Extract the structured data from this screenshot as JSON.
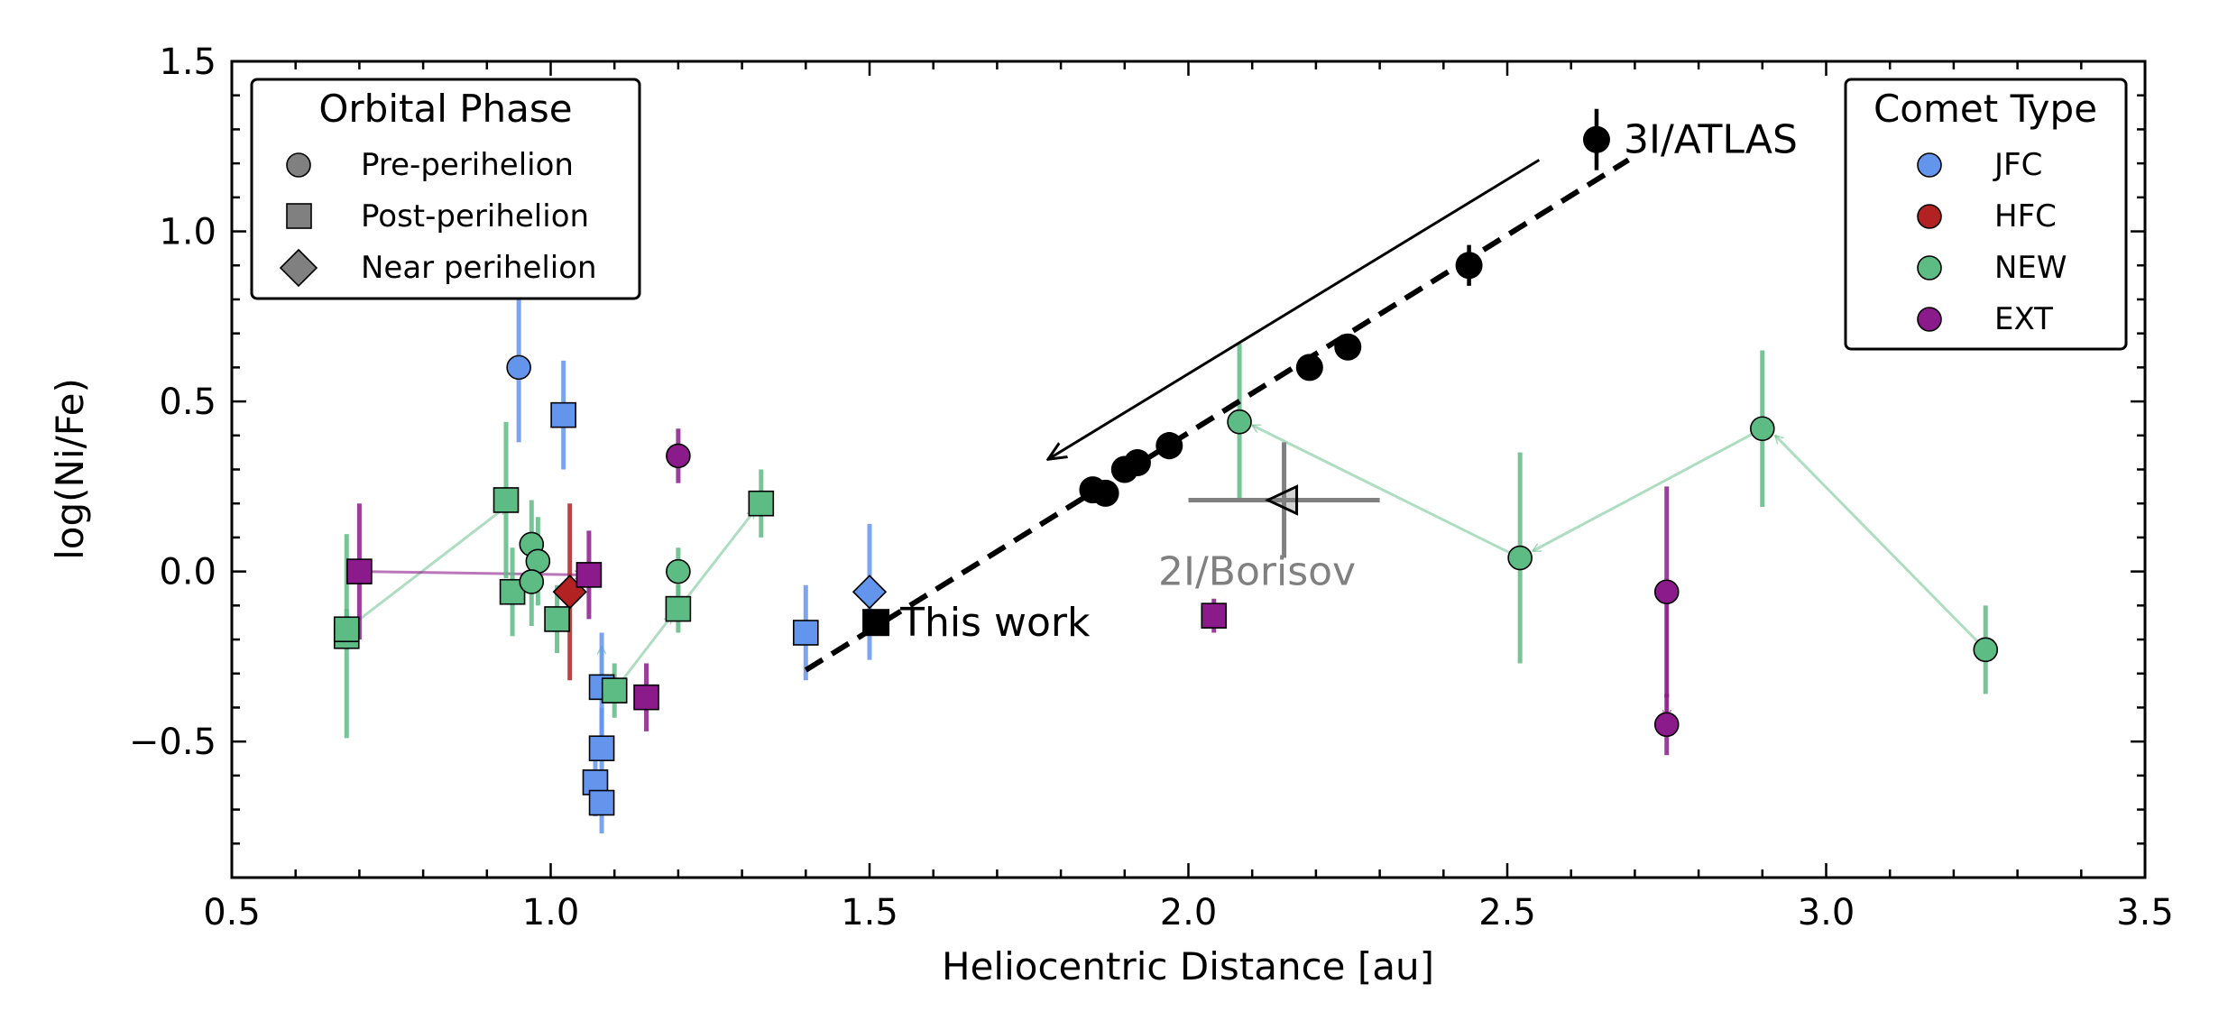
{
  "chart_data": {
    "type": "scatter",
    "xlabel": "Heliocentric Distance [au]",
    "ylabel": "log(Ni/Fe)",
    "xlim": [
      0.5,
      3.5
    ],
    "ylim": [
      -0.9,
      1.5
    ],
    "xticks": [
      0.5,
      1.0,
      1.5,
      2.0,
      2.5,
      3.0,
      3.5
    ],
    "xtick_labels": [
      "0.5",
      "1.0",
      "1.5",
      "2.0",
      "2.5",
      "3.0",
      "3.5"
    ],
    "yticks": [
      1.5,
      1.0,
      0.5,
      0.0,
      -0.5
    ],
    "ytick_labels": [
      "1.5",
      "1.0",
      "0.5",
      "0.0",
      "−0.5"
    ],
    "colors": {
      "JFC": "#6495ed",
      "HFC": "#b22222",
      "NEW": "#5dbb84",
      "EXT": "#8b1a8b",
      "ATLAS": "#000000",
      "Borisov": "#808080"
    },
    "legend_phase": {
      "title": "Orbital Phase",
      "placement": "top-left",
      "entries": [
        {
          "label": "Pre-perihelion",
          "marker": "circle"
        },
        {
          "label": "Post-perihelion",
          "marker": "square"
        },
        {
          "label": "Near perihelion",
          "marker": "diamond"
        }
      ]
    },
    "legend_type": {
      "title": "Comet Type",
      "placement": "top-right",
      "entries": [
        {
          "label": "JFC",
          "color": "#6495ed"
        },
        {
          "label": "HFC",
          "color": "#b22222"
        },
        {
          "label": "NEW",
          "color": "#5dbb84"
        },
        {
          "label": "EXT",
          "color": "#8b1a8b"
        }
      ]
    },
    "points": [
      {
        "x": 0.95,
        "y": 0.6,
        "err": 0.22,
        "type": "JFC",
        "marker": "circle"
      },
      {
        "x": 1.02,
        "y": 0.46,
        "err": 0.16,
        "type": "JFC",
        "marker": "square"
      },
      {
        "x": 1.08,
        "y": -0.34,
        "err": 0.16,
        "type": "JFC",
        "marker": "square"
      },
      {
        "x": 1.08,
        "y": -0.52,
        "err": 0.12,
        "type": "JFC",
        "marker": "square"
      },
      {
        "x": 1.07,
        "y": -0.62,
        "err": 0.1,
        "type": "JFC",
        "marker": "square"
      },
      {
        "x": 1.08,
        "y": -0.68,
        "err": 0.09,
        "type": "JFC",
        "marker": "square"
      },
      {
        "x": 1.4,
        "y": -0.18,
        "err": 0.14,
        "type": "JFC",
        "marker": "square"
      },
      {
        "x": 1.5,
        "y": -0.06,
        "err": 0.2,
        "type": "JFC",
        "marker": "diamond"
      },
      {
        "x": 1.03,
        "y": -0.06,
        "err": 0.26,
        "type": "HFC",
        "marker": "diamond"
      },
      {
        "x": 0.68,
        "y": -0.19,
        "err": 0.3,
        "type": "NEW",
        "marker": "square"
      },
      {
        "x": 0.68,
        "y": -0.17,
        "err": 0.06,
        "type": "NEW",
        "marker": "square"
      },
      {
        "x": 0.93,
        "y": 0.21,
        "err": 0.23,
        "type": "NEW",
        "marker": "square"
      },
      {
        "x": 0.94,
        "y": -0.06,
        "err": 0.13,
        "type": "NEW",
        "marker": "square"
      },
      {
        "x": 0.97,
        "y": 0.08,
        "err": 0.13,
        "type": "NEW",
        "marker": "circle"
      },
      {
        "x": 0.98,
        "y": 0.03,
        "err": 0.13,
        "type": "NEW",
        "marker": "circle"
      },
      {
        "x": 0.97,
        "y": -0.03,
        "err": 0.13,
        "type": "NEW",
        "marker": "circle"
      },
      {
        "x": 1.01,
        "y": -0.14,
        "err": 0.1,
        "type": "NEW",
        "marker": "square"
      },
      {
        "x": 1.1,
        "y": -0.35,
        "err": 0.08,
        "type": "NEW",
        "marker": "square"
      },
      {
        "x": 1.2,
        "y": 0.0,
        "err": 0.07,
        "type": "NEW",
        "marker": "circle"
      },
      {
        "x": 1.2,
        "y": -0.11,
        "err": 0.07,
        "type": "NEW",
        "marker": "square"
      },
      {
        "x": 1.33,
        "y": 0.2,
        "err": 0.1,
        "type": "NEW",
        "marker": "square"
      },
      {
        "x": 2.08,
        "y": 0.44,
        "err": 0.23,
        "type": "NEW",
        "marker": "circle"
      },
      {
        "x": 2.52,
        "y": 0.04,
        "err": 0.31,
        "type": "NEW",
        "marker": "circle"
      },
      {
        "x": 2.9,
        "y": 0.42,
        "err": 0.23,
        "type": "NEW",
        "marker": "circle"
      },
      {
        "x": 3.25,
        "y": -0.23,
        "err": 0.13,
        "type": "NEW",
        "marker": "circle"
      },
      {
        "x": 0.7,
        "y": 0.0,
        "err": 0.2,
        "type": "EXT",
        "marker": "square"
      },
      {
        "x": 1.06,
        "y": -0.01,
        "err": 0.13,
        "type": "EXT",
        "marker": "square"
      },
      {
        "x": 1.15,
        "y": -0.37,
        "err": 0.1,
        "type": "EXT",
        "marker": "square"
      },
      {
        "x": 1.2,
        "y": 0.34,
        "err": 0.08,
        "type": "EXT",
        "marker": "circle"
      },
      {
        "x": 2.04,
        "y": -0.13,
        "err": 0.05,
        "type": "EXT",
        "marker": "square"
      },
      {
        "x": 2.75,
        "y": -0.06,
        "err": 0.31,
        "type": "EXT",
        "marker": "circle"
      },
      {
        "x": 2.75,
        "y": -0.45,
        "err": 0.09,
        "type": "EXT",
        "marker": "circle"
      }
    ],
    "connections": [
      {
        "type": "NEW",
        "x1": 0.68,
        "y1": -0.17,
        "x2": 0.93,
        "y2": 0.19
      },
      {
        "type": "EXT",
        "x1": 0.7,
        "y1": 0.0,
        "x2": 1.05,
        "y2": -0.01
      },
      {
        "type": "NEW",
        "x1": 1.1,
        "y1": -0.35,
        "x2": 1.19,
        "y2": -0.13
      },
      {
        "type": "NEW",
        "x1": 1.2,
        "y1": -0.11,
        "x2": 1.32,
        "y2": 0.18
      },
      {
        "type": "NEW",
        "x1": 1.08,
        "y1": -0.34,
        "x2": 1.08,
        "y2": -0.22
      },
      {
        "type": "NEW",
        "x1": 2.9,
        "y1": 0.42,
        "x2": 2.54,
        "y2": 0.06
      },
      {
        "type": "NEW",
        "x1": 2.52,
        "y1": 0.04,
        "x2": 2.1,
        "y2": 0.43
      },
      {
        "type": "NEW",
        "x1": 3.25,
        "y1": -0.23,
        "x2": 2.92,
        "y2": 0.4
      },
      {
        "type": "EXT",
        "x1": 2.75,
        "y1": -0.06,
        "x2": 2.75,
        "y2": -0.43
      }
    ],
    "atlas": {
      "label": "3I/ATLAS",
      "points": [
        {
          "x": 1.85,
          "y": 0.24,
          "err": 0.02
        },
        {
          "x": 1.87,
          "y": 0.23,
          "err": 0.02
        },
        {
          "x": 1.9,
          "y": 0.3,
          "err": 0.03
        },
        {
          "x": 1.92,
          "y": 0.32,
          "err": 0.03
        },
        {
          "x": 1.97,
          "y": 0.37,
          "err": 0.04
        },
        {
          "x": 2.19,
          "y": 0.6,
          "err": 0.02
        },
        {
          "x": 2.25,
          "y": 0.66,
          "err": 0.02
        },
        {
          "x": 2.44,
          "y": 0.9,
          "err": 0.06
        },
        {
          "x": 2.64,
          "y": 1.27,
          "err": 0.09
        }
      ],
      "fit": {
        "x1": 1.4,
        "y1": -0.29,
        "x2": 2.69,
        "y2": 1.21
      },
      "direction_arrow": {
        "x1": 2.55,
        "y1": 1.21,
        "x2": 1.78,
        "y2": 0.33
      }
    },
    "this_work": {
      "x": 1.51,
      "y": -0.15,
      "label": "This work"
    },
    "borisov": {
      "x": 2.15,
      "y": 0.21,
      "xerr": 0.15,
      "yerr": 0.17,
      "label": "2I/Borisov"
    }
  }
}
